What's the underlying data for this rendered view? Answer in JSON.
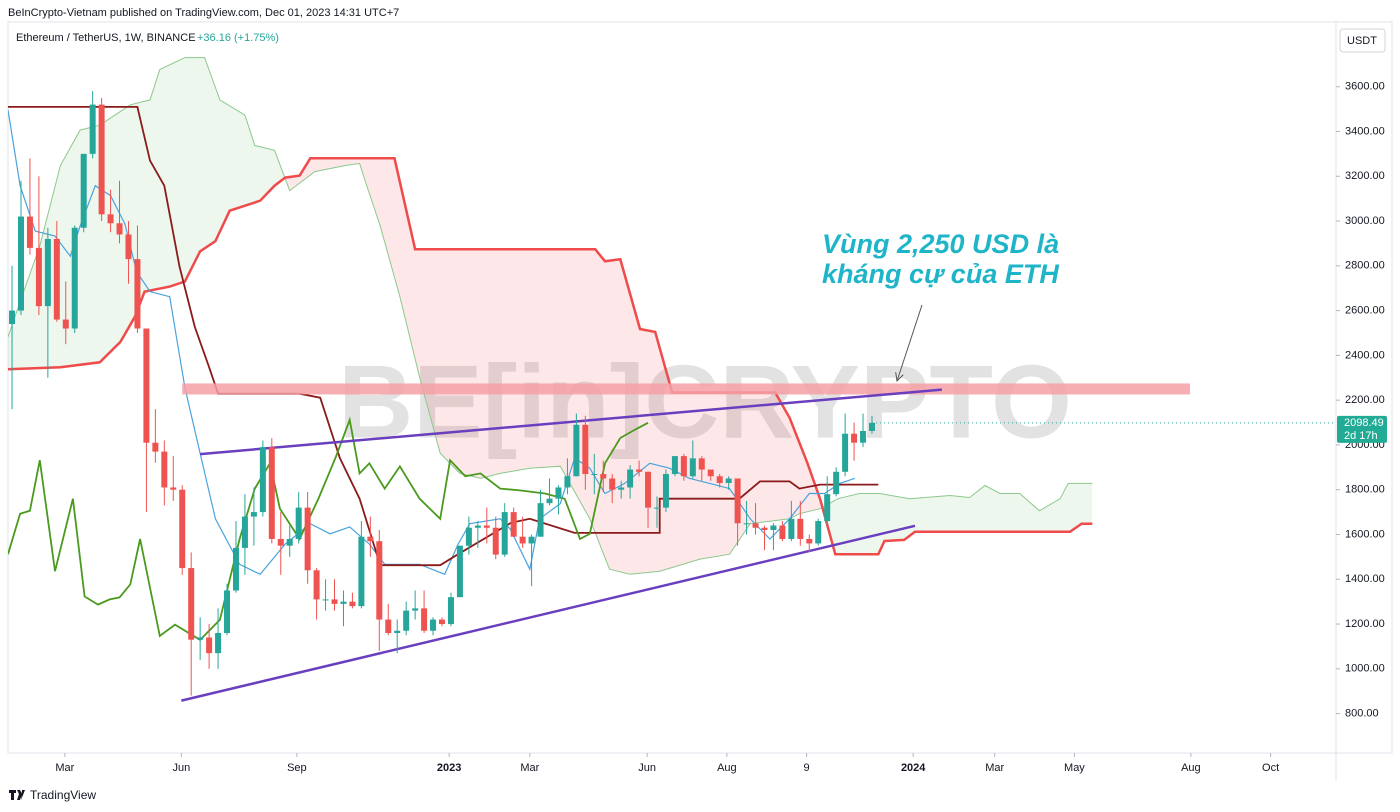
{
  "header": {
    "published": "BeInCrypto-Vietnam published on TradingView.com, Dec 01, 2023 14:31 UTC+7"
  },
  "footer": {
    "brand": "TradingView"
  },
  "watermark": "BE[in]CRYPTO",
  "chart_data": {
    "type": "candlestick",
    "title": "Ethereum / TetherUS, 1W, BINANCE",
    "change": "+36.16 (+1.75%)",
    "currency": "USDT",
    "up_color": "#26a69a",
    "down_color": "#ef5350",
    "open": [
      2540,
      2600,
      3020,
      2880,
      2620,
      2920,
      2560,
      2520,
      2970,
      3300,
      3520,
      3030,
      2990,
      2940,
      2830,
      2520,
      2010,
      1970,
      1810,
      1800,
      1450,
      1130,
      1140,
      1070,
      1160,
      1350,
      1540,
      1680,
      1700,
      1990,
      1580,
      1550,
      1580,
      1720,
      1440,
      1310,
      1310,
      1290,
      1300,
      1280,
      1590,
      1570,
      1220,
      1160,
      1170,
      1260,
      1270,
      1170,
      1220,
      1200,
      1320,
      1550,
      1630,
      1640,
      1630,
      1510,
      1700,
      1590,
      1560,
      1590,
      1740,
      1760,
      1810,
      1860,
      2090,
      1870,
      1870,
      1850,
      1800,
      1810,
      1890,
      1880,
      1720,
      1720,
      1870,
      1950,
      1860,
      1940,
      1890,
      1860,
      1830,
      1850,
      1650,
      1650,
      1630,
      1620,
      1640,
      1580,
      1670,
      1580,
      1560,
      1660,
      1780,
      1880,
      2050,
      2010,
      2062.33
    ],
    "high": [
      2800,
      3180,
      3280,
      3200,
      2970,
      3000,
      2730,
      2980,
      3300,
      3580,
      3550,
      3140,
      3180,
      3000,
      2980,
      2520,
      2160,
      2020,
      1950,
      1820,
      1520,
      1230,
      1200,
      1270,
      1380,
      1660,
      1780,
      1810,
      2020,
      2030,
      1700,
      1640,
      1790,
      1790,
      1450,
      1400,
      1400,
      1350,
      1340,
      1660,
      1680,
      1620,
      1290,
      1220,
      1300,
      1350,
      1350,
      1230,
      1230,
      1340,
      1550,
      1680,
      1660,
      1720,
      1680,
      1740,
      1720,
      1680,
      1600,
      1800,
      1850,
      1820,
      1940,
      2140,
      2130,
      1960,
      1930,
      1870,
      1840,
      1910,
      1930,
      1880,
      1770,
      1890,
      1950,
      1960,
      2020,
      1950,
      1890,
      1870,
      1860,
      1850,
      1750,
      1740,
      1640,
      1650,
      1660,
      1750,
      1750,
      1600,
      1670,
      1860,
      1900,
      2140,
      2100,
      2140,
      2130
    ],
    "low": [
      2160,
      2580,
      2850,
      2580,
      2300,
      2550,
      2450,
      2500,
      2950,
      3280,
      3000,
      2950,
      2900,
      2720,
      2500,
      1700,
      1920,
      1730,
      1750,
      1420,
      880,
      1040,
      1000,
      1000,
      1150,
      1340,
      1420,
      1550,
      1680,
      1560,
      1420,
      1500,
      1560,
      1380,
      1220,
      1260,
      1260,
      1190,
      1270,
      1270,
      1500,
      1080,
      1150,
      1070,
      1150,
      1220,
      1160,
      1150,
      1190,
      1190,
      1320,
      1510,
      1540,
      1560,
      1490,
      1500,
      1590,
      1540,
      1370,
      1590,
      1730,
      1690,
      1780,
      1860,
      1800,
      1780,
      1790,
      1740,
      1760,
      1760,
      1860,
      1630,
      1630,
      1700,
      1860,
      1840,
      1850,
      1840,
      1840,
      1810,
      1800,
      1550,
      1600,
      1600,
      1530,
      1530,
      1570,
      1570,
      1550,
      1520,
      1550,
      1640,
      1770,
      1860,
      1930,
      1990,
      2050
    ],
    "close": [
      2600,
      3020,
      2880,
      2620,
      2920,
      2560,
      2520,
      2970,
      3300,
      3520,
      3030,
      2990,
      2940,
      2830,
      2520,
      2010,
      1970,
      1810,
      1800,
      1450,
      1130,
      1140,
      1070,
      1160,
      1350,
      1540,
      1680,
      1700,
      1990,
      1580,
      1550,
      1580,
      1720,
      1440,
      1310,
      1310,
      1290,
      1300,
      1280,
      1590,
      1570,
      1220,
      1160,
      1170,
      1260,
      1270,
      1170,
      1220,
      1200,
      1320,
      1550,
      1630,
      1640,
      1630,
      1510,
      1700,
      1590,
      1560,
      1590,
      1740,
      1760,
      1810,
      1860,
      2090,
      1870,
      1870,
      1850,
      1800,
      1810,
      1890,
      1880,
      1720,
      1720,
      1870,
      1950,
      1860,
      1940,
      1890,
      1860,
      1830,
      1850,
      1650,
      1650,
      1630,
      1620,
      1640,
      1580,
      1670,
      1580,
      1560,
      1660,
      1780,
      1880,
      2050,
      2010,
      2062.33,
      2098.49
    ],
    "last_price": 2098.49,
    "countdown": "2d 17h",
    "ylim": [
      624,
      3889
    ],
    "yticks": [
      {
        "value": 800,
        "label": "800.00"
      },
      {
        "value": 1000,
        "label": "1000.00"
      },
      {
        "value": 1200,
        "label": "1200.00"
      },
      {
        "value": 1400,
        "label": "1400.00"
      },
      {
        "value": 1600,
        "label": "1600.00"
      },
      {
        "value": 1800,
        "label": "1800.00"
      },
      {
        "value": 2000,
        "label": "2000.00"
      },
      {
        "value": 2200,
        "label": "2200.00"
      },
      {
        "value": 2400,
        "label": "2400.00"
      },
      {
        "value": 2600,
        "label": "2600.00"
      },
      {
        "value": 2800,
        "label": "2800.00"
      },
      {
        "value": 3000,
        "label": "3000.00"
      },
      {
        "value": 3200,
        "label": "3200.00"
      },
      {
        "value": 3400,
        "label": "3400.00"
      },
      {
        "value": 3600,
        "label": "3600.00"
      }
    ],
    "xlim": [
      -0.45,
      147.8
    ],
    "xticks": [
      {
        "value": 5.9,
        "label": "Mar"
      },
      {
        "value": 18.9,
        "label": "Jun"
      },
      {
        "value": 31.8,
        "label": "Sep"
      },
      {
        "value": 48.8,
        "label": "2023"
      },
      {
        "value": 57.8,
        "label": "Mar"
      },
      {
        "value": 70.9,
        "label": "Jun"
      },
      {
        "value": 79.8,
        "label": "Aug"
      },
      {
        "value": 88.7,
        "label": "9"
      },
      {
        "value": 100.6,
        "label": "2024"
      },
      {
        "value": 109.7,
        "label": "Mar"
      },
      {
        "value": 118.6,
        "label": "May"
      },
      {
        "value": 131.6,
        "label": "Aug"
      },
      {
        "value": 140.5,
        "label": "Oct"
      }
    ],
    "span_a": {
      "color": "#8cc98c",
      "x": [
        -0.45,
        0.9,
        3.1,
        5.4,
        7.6,
        9.8,
        13.2,
        15.4,
        16.5,
        19.3,
        21.5,
        23.2,
        26,
        27.1,
        29.3,
        31,
        33.8,
        37.2,
        38.8,
        39.4,
        41.1,
        43.3,
        45.5,
        47.8,
        50,
        52.3,
        54.5,
        57.8,
        61.2,
        64.5,
        66.7,
        69,
        72.3,
        76.8,
        80.1,
        82.4,
        86.8,
        87.9,
        90.2,
        92.2,
        94.6,
        96.9,
        100.2,
        104.7,
        106.9,
        108.6,
        110.3,
        112.5,
        114.7,
        117,
        117.9,
        120.6
      ],
      "values": [
        2482,
        2640,
        2888,
        3248,
        3406,
        3428,
        3519,
        3541,
        3677,
        3730,
        3730,
        3541,
        3473,
        3338,
        3316,
        3136,
        3221,
        3248,
        3257,
        3181,
        2978,
        2662,
        2302,
        1963,
        1873,
        1851,
        1873,
        1896,
        1905,
        1670,
        1445,
        1422,
        1436,
        1490,
        1512,
        1648,
        1670,
        1693,
        1715,
        1760,
        1783,
        1783,
        1760,
        1774,
        1765,
        1819,
        1783,
        1783,
        1706,
        1760,
        1828,
        1828
      ]
    },
    "span_b": {
      "color": "#ef4b4b",
      "x": [
        -0.45,
        5.4,
        9.8,
        12.1,
        13.7,
        14.8,
        17.6,
        19.3,
        21,
        22.7,
        24.3,
        27.7,
        29.3,
        30.5,
        32.1,
        33.3,
        42.7,
        45,
        65.1,
        66.2,
        67.9,
        70.1,
        71.8,
        73.7,
        85.2,
        86.8,
        88.8,
        90.2,
        91.9,
        96.7,
        97.4,
        99.6,
        100.8,
        118.1,
        119.4,
        120.6
      ],
      "values": [
        2338,
        2347,
        2369,
        2460,
        2572,
        2685,
        2707,
        2730,
        2865,
        2910,
        3046,
        3091,
        3158,
        3194,
        3203,
        3280,
        3280,
        2874,
        2874,
        2820,
        2829,
        2518,
        2505,
        2234,
        2234,
        2121,
        1918,
        1760,
        1512,
        1512,
        1571,
        1576,
        1612,
        1612,
        1648,
        1648
      ]
    },
    "tenkan": {
      "color": "#4aa3df",
      "x": [
        -0.45,
        0.9,
        2.6,
        4.8,
        6.5,
        7.6,
        9.3,
        11,
        12.6,
        13.9,
        15.4,
        17.6,
        19.3,
        21,
        22.7,
        25.4,
        27.7,
        30.5,
        33.3,
        35.5,
        37.7,
        39.9,
        41.6,
        45.5,
        48.3,
        49.8,
        51.1,
        54.5,
        55.6,
        57.8,
        58.9,
        61.2,
        62.8,
        64.5,
        66.2,
        68.4,
        71.2,
        73.4,
        75.6,
        77.9,
        80.1,
        82.4,
        84.6,
        86.8,
        89,
        90.7,
        92.4,
        94.1
      ],
      "values": [
        3496,
        3158,
        2955,
        2933,
        2843,
        2978,
        3158,
        3113,
        2987,
        2775,
        2685,
        2662,
        2256,
        1963,
        1670,
        1467,
        1422,
        1557,
        1648,
        1603,
        1634,
        1557,
        1467,
        1467,
        1422,
        1557,
        1648,
        1670,
        1625,
        1445,
        1670,
        1738,
        1941,
        1896,
        1783,
        1828,
        1918,
        1896,
        1851,
        1828,
        1805,
        1670,
        1580,
        1670,
        1783,
        1783,
        1828,
        1851
      ]
    },
    "kijun": {
      "color": "#8b1a1a",
      "x": [
        -0.45,
        14,
        15.4,
        17,
        18.7,
        20.4,
        22,
        23,
        32.1,
        34.4,
        36.6,
        38.8,
        40.2,
        41.1,
        47.8,
        49.8,
        55.7,
        57.8,
        62.8,
        72.3,
        72.3,
        81.2,
        83.5,
        86.8,
        87.9,
        90.2,
        96.7
      ],
      "values": [
        3510,
        3510,
        3270,
        3158,
        2797,
        2527,
        2347,
        2229,
        2229,
        2211,
        1941,
        1760,
        1580,
        1463,
        1463,
        1512,
        1652,
        1670,
        1607,
        1607,
        1760,
        1760,
        1837,
        1837,
        1805,
        1823,
        1823
      ]
    },
    "chikou": {
      "color": "#4a9a1e",
      "x": [
        -0.45,
        0.9,
        2,
        3.1,
        4.8,
        6.8,
        8.1,
        9.6,
        10.9,
        12,
        13.2,
        14.3,
        16.5,
        18.2,
        21,
        23.2,
        25.4,
        27.1,
        28.8,
        29.9,
        32.1,
        34.2,
        36.1,
        37.7,
        38.8,
        39.9,
        41.6,
        43.3,
        45.5,
        47.8,
        48.9,
        50.6,
        52.3,
        54.5,
        56.7,
        59.5,
        61.7,
        63.4,
        64.5,
        66.2,
        67.9,
        69.5,
        71
      ],
      "values": [
        1512,
        1693,
        1706,
        1932,
        1436,
        1760,
        1323,
        1287,
        1310,
        1319,
        1377,
        1580,
        1147,
        1197,
        1129,
        1219,
        1580,
        1805,
        1918,
        1715,
        1580,
        1760,
        1941,
        2112,
        1873,
        1918,
        1805,
        1904,
        1760,
        1670,
        1932,
        1860,
        1873,
        1805,
        1797,
        1783,
        1760,
        1580,
        1603,
        1918,
        2031,
        2067,
        2099
      ]
    },
    "trendlines": [
      {
        "color": "#6a3fbf",
        "x": [
          21,
          103.8
        ],
        "values": [
          1959,
          2247
        ]
      },
      {
        "color": "#6a3fbf",
        "x": [
          18.9,
          100.8
        ],
        "values": [
          858,
          1639
        ]
      }
    ],
    "resistance": {
      "value": 2250,
      "x": [
        19,
        131.5
      ],
      "color": "#f4a0a6"
    },
    "annotation": {
      "lines": [
        "Vùng 2,250 USD là",
        "kháng cự của ETH"
      ],
      "color": "#1fb5c9"
    }
  }
}
